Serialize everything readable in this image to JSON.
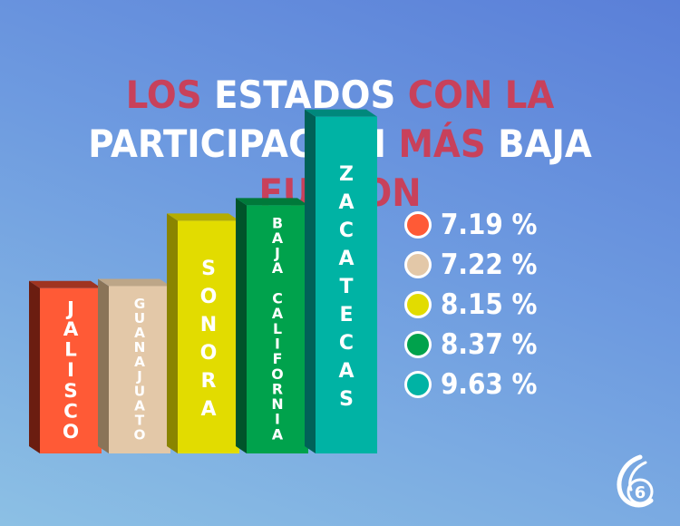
{
  "title": {
    "line1": [
      {
        "text": "LOS ",
        "style": "r"
      },
      {
        "text": "ESTADOS ",
        "style": "w"
      },
      {
        "text": "CON LA",
        "style": "r"
      }
    ],
    "line2": [
      {
        "text": "PARTICIPACIÓN ",
        "style": "w"
      },
      {
        "text": "MÁS ",
        "style": "r"
      },
      {
        "text": "BAJA ",
        "style": "w"
      },
      {
        "text": "FUERON",
        "style": "r"
      }
    ]
  },
  "colors": {
    "title_white": "#ffffff",
    "title_red": "#c8415b"
  },
  "chart_data": {
    "type": "bar",
    "categories": [
      "JALISCO",
      "GUANAJUATO",
      "SONORA",
      "BAJA CALIFORNIA",
      "ZACATECAS"
    ],
    "values": [
      7.19,
      7.22,
      8.15,
      8.37,
      9.63
    ],
    "value_labels": [
      "7.19 %",
      "7.22 %",
      "8.15 %",
      "8.37 %",
      "9.63 %"
    ],
    "colors": [
      "#ff5a36",
      "#e3c8a8",
      "#e2dc00",
      "#00a24c",
      "#00b3a4"
    ],
    "side_colors": [
      "#6b1d10",
      "#8a7458",
      "#8a8400",
      "#00542a",
      "#006258"
    ],
    "top_colors": [
      "#a03420",
      "#bda688",
      "#b5ad00",
      "#00793a",
      "#00887c"
    ],
    "label_colors": [
      "#ffffff",
      "#ffffff",
      "#ffffff",
      "#ffffff",
      "#ffffff"
    ],
    "style": "3d-columns",
    "legend_position": "right",
    "grid": false
  },
  "logo": {
    "icon": "channel-6-logo-icon",
    "text": "6"
  }
}
